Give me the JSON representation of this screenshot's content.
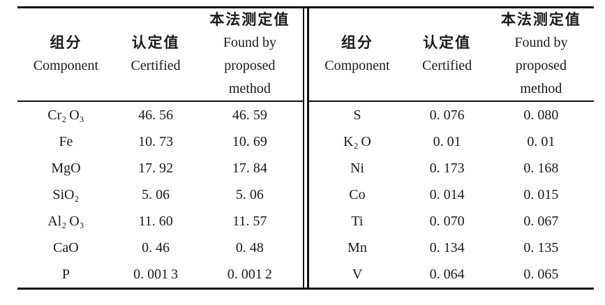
{
  "header": {
    "component_zh": "组分",
    "component_en": "Component",
    "certified_zh": "认定值",
    "certified_en": "Certified",
    "found_zh": "本法测定值",
    "found_en_line1": "Found by",
    "found_en_line2": "proposed",
    "found_en_line3": "method"
  },
  "left": {
    "rows": [
      {
        "component": "Cr₂ O₃",
        "certified": "46. 56",
        "found": "46. 59"
      },
      {
        "component": "Fe",
        "certified": "10. 73",
        "found": "10. 69"
      },
      {
        "component": "MgO",
        "certified": "17. 92",
        "found": "17. 84"
      },
      {
        "component": "SiO₂",
        "certified": "5. 06",
        "found": "5. 06"
      },
      {
        "component": "Al₂ O₃",
        "certified": "11. 60",
        "found": "11. 57"
      },
      {
        "component": "CaO",
        "certified": "0. 46",
        "found": "0. 48"
      },
      {
        "component": "P",
        "certified": "0. 001 3",
        "found": "0. 001 2"
      }
    ]
  },
  "right": {
    "rows": [
      {
        "component": "S",
        "certified": "0. 076",
        "found": "0. 080"
      },
      {
        "component": "K₂ O",
        "certified": "0. 01",
        "found": "0. 01"
      },
      {
        "component": "Ni",
        "certified": "0. 173",
        "found": "0. 168"
      },
      {
        "component": "Co",
        "certified": "0. 014",
        "found": "0. 015"
      },
      {
        "component": "Ti",
        "certified": "0. 070",
        "found": "0. 067"
      },
      {
        "component": "Mn",
        "certified": "0. 134",
        "found": "0. 135"
      },
      {
        "component": "V",
        "certified": "0. 064",
        "found": "0. 065"
      }
    ]
  },
  "colors": {
    "text": "#1a1a1a",
    "rule": "#101010",
    "background": "#ffffff"
  }
}
